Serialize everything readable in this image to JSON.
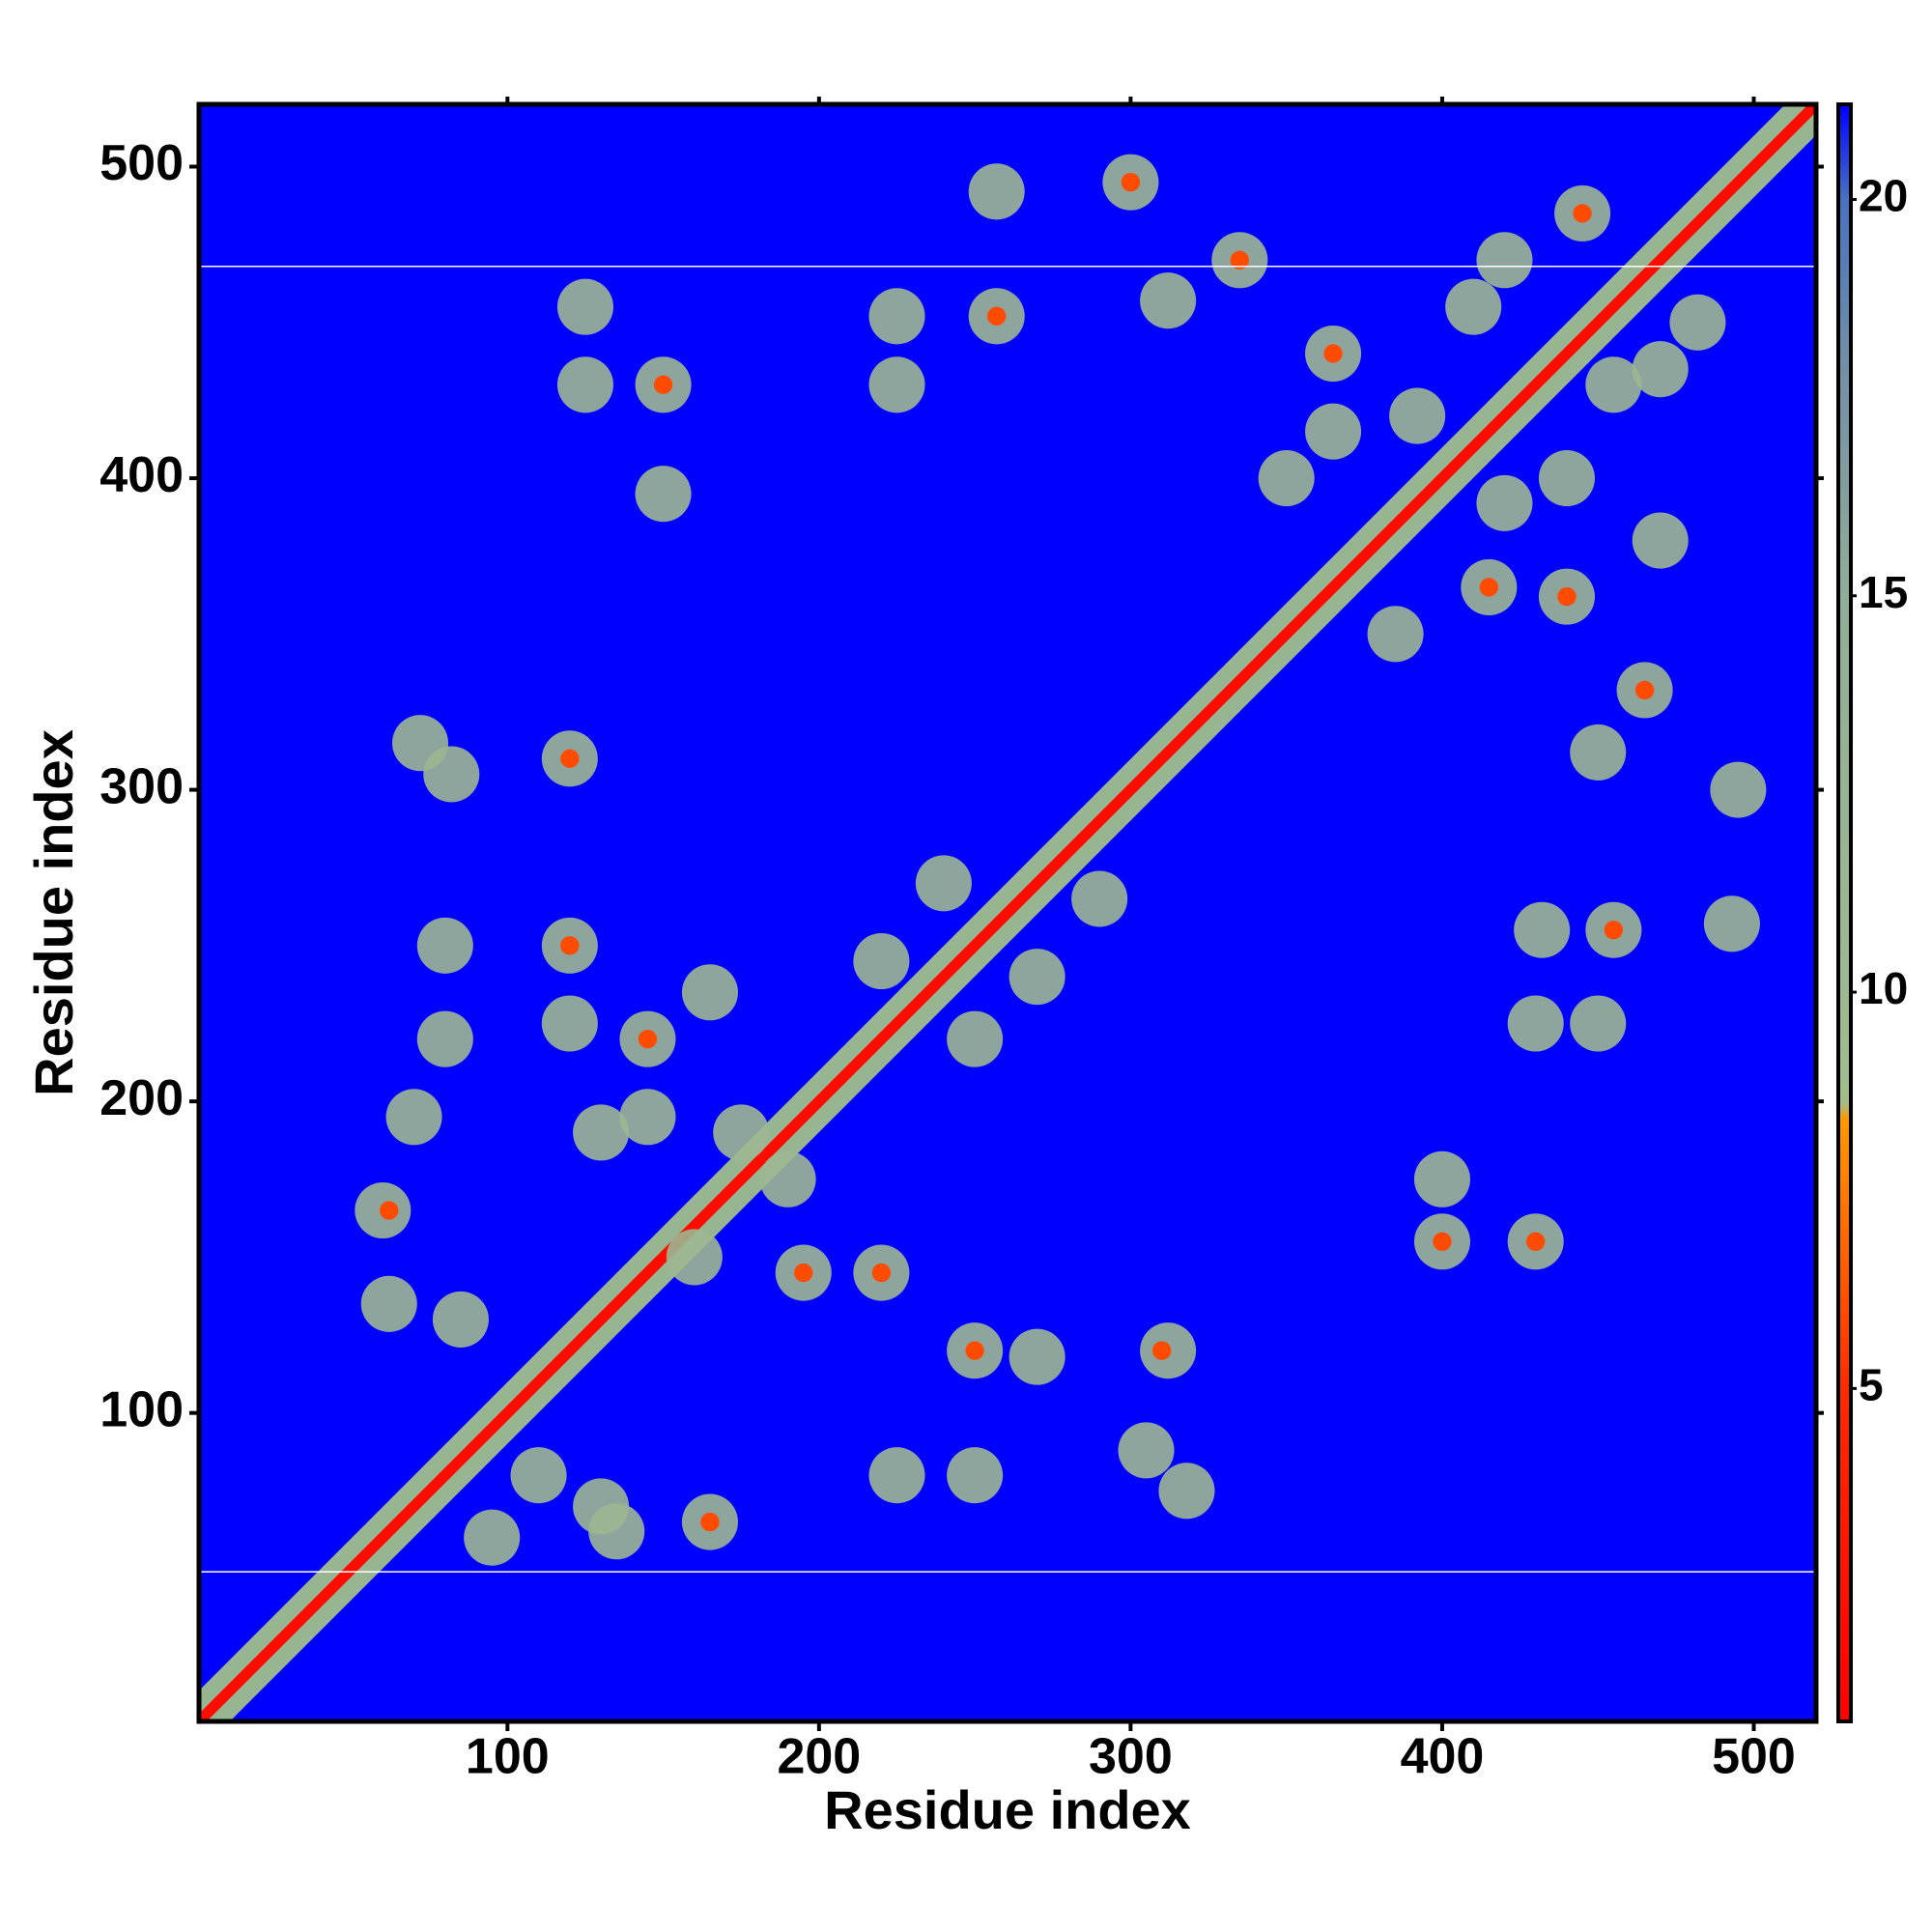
{
  "chart_data": {
    "type": "heatmap",
    "xlabel": "Residue index",
    "ylabel": "Residue index",
    "xlim": [
      1,
      520
    ],
    "ylim": [
      1,
      520
    ],
    "xticks": [
      100,
      200,
      300,
      400,
      500
    ],
    "yticks": [
      100,
      200,
      300,
      400,
      500
    ],
    "colorbar": {
      "clim": [
        0.8,
        21.2
      ],
      "ticks": [
        5,
        10,
        15,
        20
      ],
      "colormap": [
        {
          "value": 0.8,
          "color": "#ff0000"
        },
        {
          "value": 5,
          "color": "#ff2a00"
        },
        {
          "value": 8.4,
          "color": "#ff9900"
        },
        {
          "value": 8.6,
          "color": "#a3bc8c"
        },
        {
          "value": 15,
          "color": "#8fae98"
        },
        {
          "value": 18,
          "color": "#6f8fa8"
        },
        {
          "value": 20,
          "color": "#4a70c0"
        },
        {
          "value": 21.2,
          "color": "#0000ff"
        }
      ]
    },
    "diagonal": {
      "x": [
        1,
        520
      ],
      "y": [
        1,
        520
      ],
      "values": [
        2,
        2
      ],
      "halo_values": [
        12,
        12
      ]
    },
    "gap_rows": [
      49,
      468
    ],
    "cells": {
      "x": [
        60,
        62,
        72,
        82,
        120,
        130,
        110,
        165,
        135,
        250,
        225,
        312,
        318,
        305,
        80,
        80,
        70,
        120,
        145,
        145,
        195,
        220,
        250,
        270,
        220,
        250,
        190,
        175,
        120,
        165,
        240,
        270,
        290,
        130,
        160,
        85,
        95,
        400,
        430,
        400,
        430,
        450,
        432,
        455,
        493,
        495,
        450,
        440,
        465,
        415,
        420,
        392,
        365,
        365,
        335,
        455,
        445,
        470,
        482,
        410,
        350,
        440,
        420,
        385,
        470,
        150,
        150,
        125,
        225,
        225,
        257,
        257,
        300,
        312,
        125,
        62,
        120,
        120,
        145,
        195,
        250,
        220,
        310,
        165,
        455,
        400,
        430,
        335,
        365,
        415,
        440,
        465,
        445,
        150,
        257,
        300
      ],
      "y": [
        165,
        135,
        315,
        305,
        310,
        70,
        80,
        65,
        62,
        80,
        80,
        120,
        75,
        88,
        250,
        220,
        195,
        250,
        220,
        195,
        145,
        145,
        120,
        118,
        245,
        220,
        175,
        190,
        225,
        235,
        270,
        240,
        265,
        190,
        150,
        130,
        60,
        155,
        155,
        175,
        225,
        225,
        255,
        255,
        257,
        300,
        312,
        362,
        332,
        365,
        392,
        420,
        440,
        415,
        470,
        430,
        485,
        435,
        450,
        455,
        400,
        400,
        470,
        350,
        380,
        395,
        430,
        430,
        430,
        452,
        452,
        492,
        495,
        457,
        455,
        165,
        310,
        250,
        220,
        145,
        120,
        145,
        120,
        65,
        255,
        155,
        155,
        470,
        440,
        365,
        362,
        332,
        485,
        430,
        452,
        495
      ],
      "values": [
        11,
        11,
        11,
        11,
        11,
        11,
        11,
        11,
        11,
        11,
        11,
        11,
        11,
        11,
        11,
        11,
        11,
        11,
        11,
        11,
        11,
        11,
        11,
        11,
        11,
        11,
        11,
        11,
        11,
        11,
        11,
        11,
        11,
        11,
        11,
        11,
        11,
        11,
        11,
        11,
        11,
        11,
        11,
        11,
        11,
        11,
        11,
        11,
        11,
        11,
        11,
        11,
        11,
        11,
        11,
        11,
        11,
        11,
        11,
        11,
        11,
        11,
        11,
        11,
        11,
        11,
        11,
        11,
        11,
        11,
        11,
        11,
        11,
        11,
        11,
        6,
        6,
        6,
        6,
        6,
        6,
        6,
        6,
        6,
        6,
        6,
        6,
        6,
        6,
        6,
        6,
        6,
        6,
        6,
        6,
        6
      ]
    }
  }
}
